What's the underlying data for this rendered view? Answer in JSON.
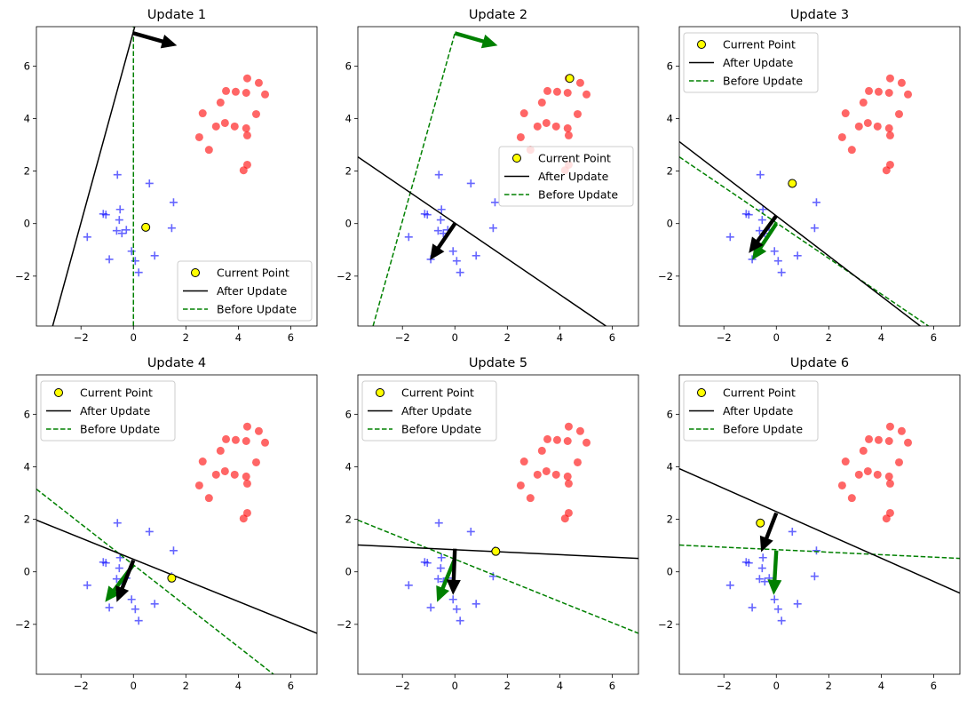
{
  "chart_data": {
    "type": "scatter",
    "layout": "2x3 grid",
    "xlim": [
      -3.7,
      7.0
    ],
    "ylim": [
      -3.9,
      7.5
    ],
    "xticks": [
      -2,
      0,
      2,
      4,
      6
    ],
    "yticks": [
      -2,
      0,
      2,
      4,
      6
    ],
    "colors": {
      "red_class": "#ff0000",
      "blue_class": "#0000ff",
      "current_point": "#ffff00",
      "after": "#000000",
      "before": "#008000"
    },
    "red_points": [
      [
        4.34,
        5.53
      ],
      [
        4.78,
        5.36
      ],
      [
        5.02,
        4.92
      ],
      [
        3.53,
        5.05
      ],
      [
        3.9,
        5.02
      ],
      [
        4.3,
        4.98
      ],
      [
        3.32,
        4.61
      ],
      [
        2.64,
        4.2
      ],
      [
        4.68,
        4.17
      ],
      [
        3.49,
        3.83
      ],
      [
        3.15,
        3.7
      ],
      [
        3.86,
        3.7
      ],
      [
        4.3,
        3.63
      ],
      [
        4.34,
        3.36
      ],
      [
        2.51,
        3.29
      ],
      [
        2.88,
        2.81
      ],
      [
        4.34,
        2.24
      ],
      [
        4.2,
        2.03
      ]
    ],
    "blue_points": [
      [
        -0.61,
        1.86
      ],
      [
        0.61,
        1.53
      ],
      [
        1.53,
        0.81
      ],
      [
        -1.15,
        0.37
      ],
      [
        -1.05,
        0.34
      ],
      [
        -0.51,
        0.54
      ],
      [
        -0.54,
        0.14
      ],
      [
        -0.44,
        -0.37
      ],
      [
        -0.64,
        -0.27
      ],
      [
        -0.27,
        -0.24
      ],
      [
        1.46,
        -0.17
      ],
      [
        -1.76,
        -0.51
      ],
      [
        -0.07,
        -1.05
      ],
      [
        0.81,
        -1.22
      ],
      [
        -0.92,
        -1.36
      ],
      [
        0.07,
        -1.42
      ],
      [
        0.2,
        -1.86
      ]
    ],
    "legend": {
      "current": "Current Point",
      "after": "After Update",
      "before": "Before Update"
    },
    "subplots": [
      {
        "title": "Update 1",
        "legend_loc": "lower-right",
        "current": [
          0.47,
          -0.14
        ],
        "after_line": [
          [
            -3.08,
            -3.9
          ],
          [
            0.05,
            7.5
          ]
        ],
        "before_line": [
          [
            0,
            -3.9
          ],
          [
            0,
            7.5
          ]
        ],
        "after_arrow": [
          [
            0,
            7.25
          ],
          [
            1.66,
            6.78
          ]
        ],
        "before_arrow": null
      },
      {
        "title": "Update 2",
        "legend_loc": "center-right",
        "current": [
          4.38,
          5.53
        ],
        "after_line": [
          [
            -3.7,
            2.54
          ],
          [
            5.76,
            -3.9
          ]
        ],
        "before_line": [
          [
            -3.12,
            -3.9
          ],
          [
            0,
            7.25
          ]
        ],
        "after_arrow": [
          [
            0,
            0
          ],
          [
            -0.95,
            -1.39
          ]
        ],
        "before_arrow": [
          [
            0,
            7.25
          ],
          [
            1.63,
            6.78
          ]
        ]
      },
      {
        "title": "Update 3",
        "legend_loc": "upper-left",
        "current": [
          0.61,
          1.53
        ],
        "after_line": [
          [
            -3.7,
            3.12
          ],
          [
            5.49,
            -3.9
          ]
        ],
        "before_line": [
          [
            -3.7,
            2.54
          ],
          [
            5.8,
            -3.9
          ]
        ],
        "after_arrow": [
          [
            0,
            0.3
          ],
          [
            -1.05,
            -1.12
          ]
        ],
        "before_arrow": [
          [
            0,
            0
          ],
          [
            -0.92,
            -1.39
          ]
        ]
      },
      {
        "title": "Update 4",
        "legend_loc": "upper-left",
        "current": [
          1.46,
          -0.24
        ],
        "after_line": [
          [
            -3.7,
            1.97
          ],
          [
            7.0,
            -2.34
          ]
        ],
        "before_line": [
          [
            -3.7,
            3.15
          ],
          [
            5.34,
            -3.9
          ]
        ],
        "after_arrow": [
          [
            0,
            0.44
          ],
          [
            -0.64,
            -1.15
          ]
        ],
        "before_arrow": [
          [
            0,
            0.27
          ],
          [
            -1.08,
            -1.15
          ]
        ]
      },
      {
        "title": "Update 5",
        "legend_loc": "upper-left",
        "current": [
          1.56,
          0.78
        ],
        "after_line": [
          [
            -3.7,
            1.02
          ],
          [
            7.0,
            0.51
          ]
        ],
        "before_line": [
          [
            -3.7,
            1.97
          ],
          [
            7.0,
            -2.34
          ]
        ],
        "after_arrow": [
          [
            0,
            0.88
          ],
          [
            -0.07,
            -0.88
          ]
        ],
        "before_arrow": [
          [
            0,
            0.5
          ],
          [
            -0.68,
            -1.15
          ]
        ]
      },
      {
        "title": "Update 6",
        "legend_loc": "upper-left",
        "current": [
          -0.61,
          1.86
        ],
        "after_line": [
          [
            -3.7,
            3.93
          ],
          [
            7.0,
            -0.81
          ]
        ],
        "before_line": [
          [
            -3.7,
            1.02
          ],
          [
            7.0,
            0.51
          ]
        ],
        "after_arrow": [
          [
            0,
            2.24
          ],
          [
            -0.58,
            0.75
          ]
        ],
        "before_arrow": [
          [
            0,
            0.81
          ],
          [
            -0.1,
            -0.88
          ]
        ]
      }
    ]
  }
}
